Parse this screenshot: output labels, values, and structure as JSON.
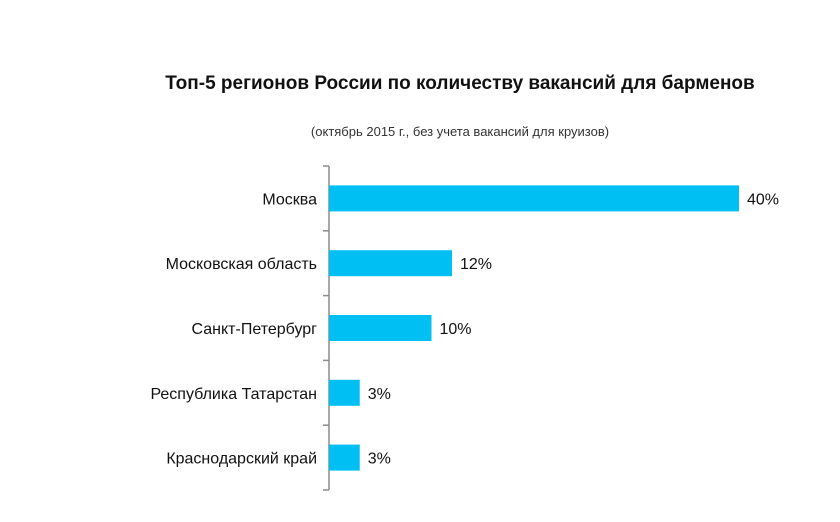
{
  "chart_data": {
    "type": "bar",
    "orientation": "horizontal",
    "title": "Топ-5 регионов России по количеству вакансий для барменов",
    "subtitle": "(октябрь 2015 г., без учета вакансий для круизов)",
    "categories": [
      "Москва",
      "Московская область",
      "Санкт-Петербург",
      "Республика Татарстан",
      "Краснодарский край"
    ],
    "values": [
      40,
      12,
      10,
      3,
      3
    ],
    "value_labels": [
      "40%",
      "12%",
      "10%",
      "3%",
      "3%"
    ],
    "xlim": [
      0,
      40
    ],
    "grid": false,
    "legend": "none",
    "bar_color": "#00BFF3",
    "axis_color": "#8c8c8c"
  }
}
